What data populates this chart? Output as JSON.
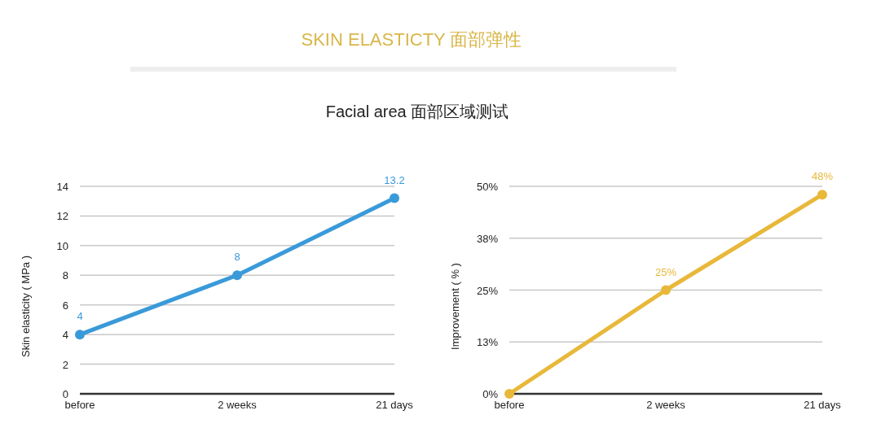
{
  "chart_data": [
    {
      "type": "line",
      "title": "SKIN ELASTICTY  面部弹性",
      "subtitle": "Facial area  面部区域测试",
      "categories": [
        "before",
        "2 weeks",
        "21 days"
      ],
      "ylabel": "Skin elasticity ( MPa )",
      "series": [
        {
          "color": "#3a9ad9",
          "values": [
            4,
            8,
            13.2
          ]
        }
      ],
      "ylim": [
        0,
        14
      ],
      "yticks": [
        0,
        2,
        4,
        6,
        8,
        10,
        12,
        14
      ],
      "grid": "y",
      "marker": "circle",
      "line_style": "solid",
      "data_labels": true
    },
    {
      "type": "line",
      "categories": [
        "before",
        "2 weeks",
        "21 days"
      ],
      "ylabel": "Improvement ( % )",
      "series": [
        {
          "color": "#e8b83a",
          "values": [
            0,
            25,
            48
          ],
          "value_labels": [
            null,
            "25%",
            "48%"
          ]
        }
      ],
      "ylim": [
        0,
        50
      ],
      "yticks": [
        {
          "value": 0,
          "label": "0%"
        },
        {
          "value": 12.5,
          "label": "13%"
        },
        {
          "value": 25,
          "label": "25%"
        },
        {
          "value": 37.5,
          "label": "38%"
        },
        {
          "value": 50,
          "label": "50%"
        }
      ],
      "grid": "y",
      "marker": "circle",
      "line_style": "solid"
    }
  ]
}
